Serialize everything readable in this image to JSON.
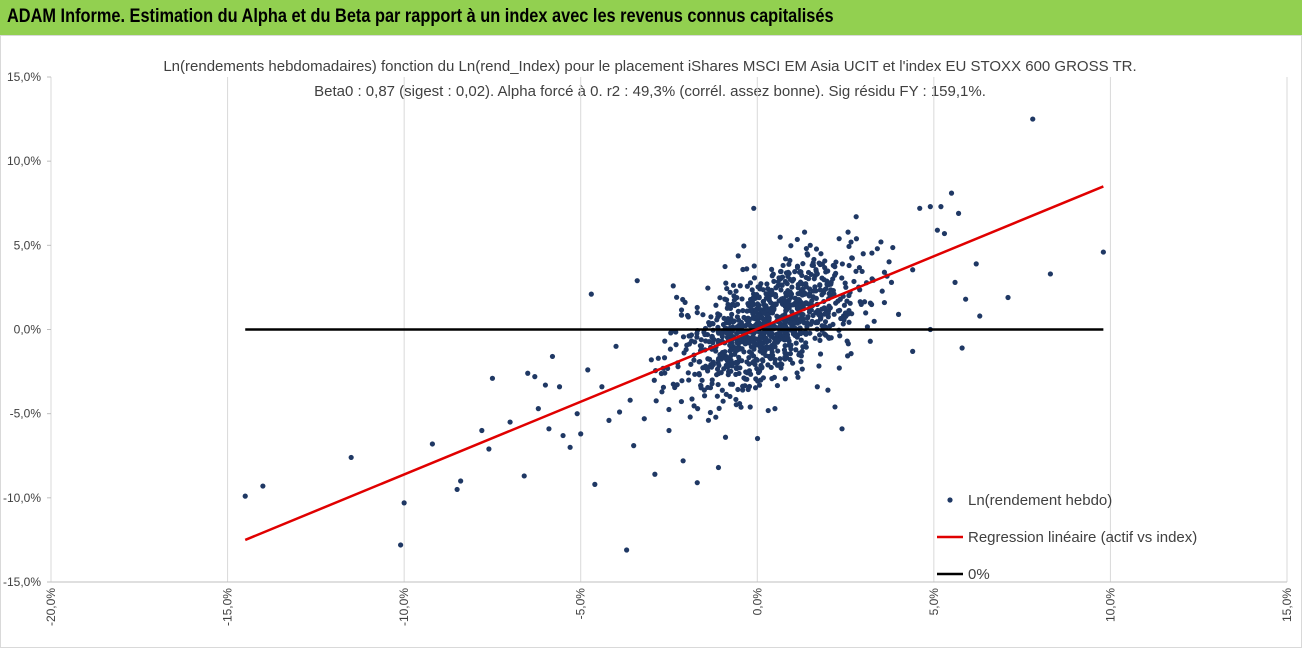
{
  "banner": {
    "title": "ADAM Informe. Estimation du Alpha et du Beta par rapport à un index avec les revenus connus capitalisés"
  },
  "colors": {
    "banner_bg": "#92d050",
    "points": "#1f3864",
    "regression": "#e00000",
    "zero_line": "#000000",
    "grid": "#d9d9d9"
  },
  "chart_data": {
    "type": "scatter",
    "title_line1": "Ln(rendements hebdomadaires) fonction du Ln(rend_Index) pour le placement iShares MSCI EM Asia UCIT et l'index EU STOXX 600 GROSS TR.",
    "title_line2": "Beta0 : 0,87  (sigest : 0,02).  Alpha forcé à 0. r2 : 49,3% (corrél. assez bonne). Sig résidu FY : 159,1%.",
    "xlabel": "",
    "ylabel": "",
    "xlim": [
      -20,
      15
    ],
    "ylim": [
      -15,
      15
    ],
    "x_ticks": [
      -20,
      -15,
      -10,
      -5,
      0,
      5,
      10,
      15
    ],
    "y_ticks": [
      -15,
      -10,
      -5,
      0,
      5,
      10,
      15
    ],
    "x_tick_labels": [
      "-20,0%",
      "-15,0%",
      "-10,0%",
      "-5,0%",
      "0,0%",
      "5,0%",
      "10,0%",
      "15,0%"
    ],
    "y_tick_labels": [
      "-15,0%",
      "-10,0%",
      "-5,0%",
      "0,0%",
      "5,0%",
      "10,0%",
      "15,0%"
    ],
    "grid": "vertical gridlines only",
    "legend_position": "bottom-right",
    "series": [
      {
        "name": "Ln(rendement hebdo)",
        "kind": "points",
        "points": [
          [
            7.8,
            12.5
          ],
          [
            9.8,
            4.6
          ],
          [
            8.3,
            3.3
          ],
          [
            7.1,
            1.9
          ],
          [
            6.2,
            3.9
          ],
          [
            6.3,
            0.8
          ],
          [
            5.8,
            -1.1
          ],
          [
            5.7,
            6.9
          ],
          [
            5.5,
            8.1
          ],
          [
            5.2,
            7.3
          ],
          [
            4.9,
            7.3
          ],
          [
            4.6,
            7.2
          ],
          [
            5.1,
            5.9
          ],
          [
            5.3,
            5.7
          ],
          [
            5.6,
            2.8
          ],
          [
            5.9,
            1.8
          ],
          [
            4.9,
            0.0
          ],
          [
            4.4,
            -1.3
          ],
          [
            4.0,
            0.9
          ],
          [
            3.6,
            1.6
          ],
          [
            -14.5,
            -9.9
          ],
          [
            -14.0,
            -9.3
          ],
          [
            -11.5,
            -7.6
          ],
          [
            -10.0,
            -10.3
          ],
          [
            -10.1,
            -12.8
          ],
          [
            -9.2,
            -6.8
          ],
          [
            -8.4,
            -9.0
          ],
          [
            -8.5,
            -9.5
          ],
          [
            -7.8,
            -6.0
          ],
          [
            -7.6,
            -7.1
          ],
          [
            -7.5,
            -2.9
          ],
          [
            -7.0,
            -5.5
          ],
          [
            -6.6,
            -8.7
          ],
          [
            -6.5,
            -2.6
          ],
          [
            -6.3,
            -2.8
          ],
          [
            -6.2,
            -4.7
          ],
          [
            -6.0,
            -3.3
          ],
          [
            -5.9,
            -5.9
          ],
          [
            -5.8,
            -1.6
          ],
          [
            -5.6,
            -3.4
          ],
          [
            -5.5,
            -6.3
          ],
          [
            -5.3,
            -7.0
          ],
          [
            -5.1,
            -5.0
          ],
          [
            -5.0,
            -6.2
          ],
          [
            -4.8,
            -2.4
          ],
          [
            -4.7,
            2.1
          ],
          [
            -4.6,
            -9.2
          ],
          [
            -4.4,
            -3.4
          ],
          [
            -4.2,
            -5.4
          ],
          [
            -4.0,
            -1.0
          ],
          [
            -3.9,
            -4.9
          ],
          [
            -3.7,
            -13.1
          ],
          [
            -3.6,
            -4.2
          ],
          [
            -3.5,
            -6.9
          ],
          [
            -3.4,
            2.9
          ],
          [
            -3.2,
            -5.3
          ],
          [
            -3.0,
            -1.8
          ],
          [
            -2.9,
            -8.6
          ],
          [
            -2.7,
            -3.7
          ],
          [
            -2.5,
            -6.0
          ],
          [
            -2.3,
            -0.9
          ],
          [
            -2.1,
            -7.8
          ],
          [
            -1.9,
            -5.2
          ],
          [
            -1.7,
            -9.1
          ],
          [
            -1.5,
            -3.6
          ],
          [
            -1.3,
            -2.1
          ],
          [
            -1.1,
            -8.2
          ],
          [
            -0.9,
            -6.4
          ],
          [
            -0.7,
            1.5
          ],
          [
            -0.5,
            -4.4
          ],
          [
            -0.3,
            3.6
          ],
          [
            -0.1,
            7.2
          ],
          [
            0.1,
            -3.0
          ],
          [
            0.3,
            -2.1
          ],
          [
            0.5,
            -4.7
          ],
          [
            0.8,
            4.2
          ],
          [
            1.0,
            -2.0
          ],
          [
            1.2,
            -1.4
          ],
          [
            1.5,
            5.0
          ],
          [
            1.7,
            -3.4
          ],
          [
            2.0,
            -3.6
          ],
          [
            2.2,
            -4.6
          ],
          [
            2.4,
            -5.9
          ],
          [
            2.6,
            3.8
          ],
          [
            2.8,
            6.7
          ],
          [
            3.0,
            4.5
          ],
          [
            3.2,
            -0.7
          ],
          [
            3.4,
            4.8
          ],
          [
            3.6,
            3.4
          ],
          [
            3.8,
            2.8
          ]
        ],
        "cloud": {
          "count": 1000,
          "seed": 7,
          "beta": 0.87,
          "x_mean": 0.3,
          "x_sd": 1.3,
          "resid_sd": 1.6
        }
      },
      {
        "name": "Regression linéaire (actif vs index)",
        "kind": "line",
        "x": [
          -14.5,
          9.8
        ],
        "y": [
          -12.5,
          8.5
        ]
      },
      {
        "name": "0%",
        "kind": "line",
        "x": [
          -14.5,
          9.8
        ],
        "y": [
          0,
          0
        ]
      }
    ]
  }
}
